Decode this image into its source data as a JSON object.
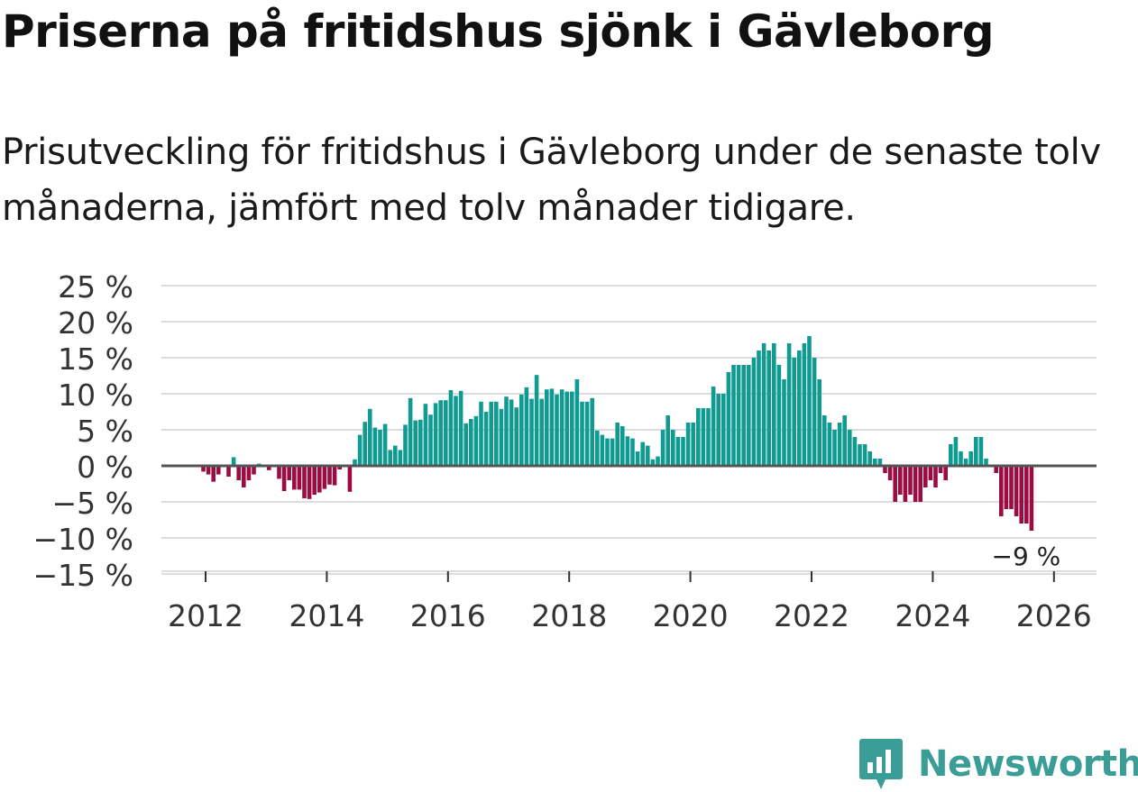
{
  "title": "Priserna på fritidshus sjönk i Gävleborg",
  "subtitle": "Prisutveckling för fritidshus i Gävleborg under de senaste tolv månaderna, jämfört med tolv månader tidigare.",
  "brand": {
    "name": "Newsworthy",
    "icon": "newsworthy-logo-icon",
    "color": "#3a9d96"
  },
  "colors": {
    "positive": "#0f9b91",
    "negative": "#9b0c43",
    "zero_line": "#555555",
    "grid": "#dddddd"
  },
  "chart_data": {
    "type": "bar",
    "title": "",
    "xlabel": "",
    "ylabel": "",
    "x_start": "2012-01",
    "x_interval": "month",
    "x_ticks": [
      "2012",
      "2014",
      "2016",
      "2018",
      "2020",
      "2022",
      "2024",
      "2026"
    ],
    "y_ticks": [
      "25 %",
      "20 %",
      "15 %",
      "10 %",
      "5 %",
      "0 %",
      "−10 %",
      "−15 %"
    ],
    "y_tick_values": [
      25,
      20,
      15,
      10,
      5,
      0,
      -10,
      -15
    ],
    "y_tick_labels_all": [
      "25 %",
      "20 %",
      "15 %",
      "10 %",
      "5 %",
      "0 %",
      "−5 %",
      "−10 %",
      "−15 %"
    ],
    "ylim": [
      -15,
      25
    ],
    "grid": true,
    "unit": "%",
    "series": [
      {
        "values": [
          -0.8,
          -1.2,
          -2.2,
          -1.2,
          0,
          -1.5,
          1.2,
          -2,
          -3,
          -2,
          -1.2,
          0.3,
          0,
          -0.6,
          0,
          -1.8,
          -3.5,
          -2,
          -3.3,
          -3.3,
          -4.5,
          -4.6,
          -4,
          -3.7,
          -3.2,
          -2.6,
          -2.7,
          -0.5,
          0,
          -3.6,
          0.9,
          4.3,
          6.1,
          7.9,
          5.3,
          5,
          5.8,
          2.2,
          2.8,
          2.2,
          5.7,
          9.4,
          6.3,
          6.4,
          8.6,
          7.1,
          8.7,
          9.1,
          9.1,
          10.5,
          9.7,
          10.4,
          5.9,
          6.5,
          6.9,
          8.9,
          7.5,
          8.9,
          8.9,
          7.9,
          9.6,
          9.2,
          8.1,
          9.9,
          10.9,
          9.3,
          12.6,
          9.3,
          10.6,
          10.7,
          9.9,
          10.6,
          10.3,
          10.3,
          12,
          8.9,
          8.9,
          9.4,
          4.9,
          4.3,
          3.8,
          3.8,
          6,
          5.5,
          4.1,
          3.8,
          2,
          3.3,
          2.8,
          0.9,
          1.3,
          5,
          7,
          5,
          4,
          4,
          6,
          6,
          8,
          8,
          8,
          11,
          10,
          10,
          13,
          14,
          14,
          14,
          14,
          15,
          16,
          17,
          16,
          17,
          14,
          12,
          17,
          15,
          16,
          17,
          18,
          15,
          12,
          7,
          6,
          5,
          6,
          7,
          5,
          4,
          3,
          3,
          2,
          1,
          1,
          -1,
          -2,
          -5,
          -4,
          -5,
          -4,
          -5,
          -5,
          -3,
          -2,
          -3,
          -1,
          -2,
          3,
          4,
          2,
          1,
          2,
          4,
          4,
          1,
          0,
          -1,
          -7,
          -6,
          -6,
          -7,
          -8,
          -8,
          -9
        ],
        "last_label": "−9 %"
      }
    ]
  }
}
